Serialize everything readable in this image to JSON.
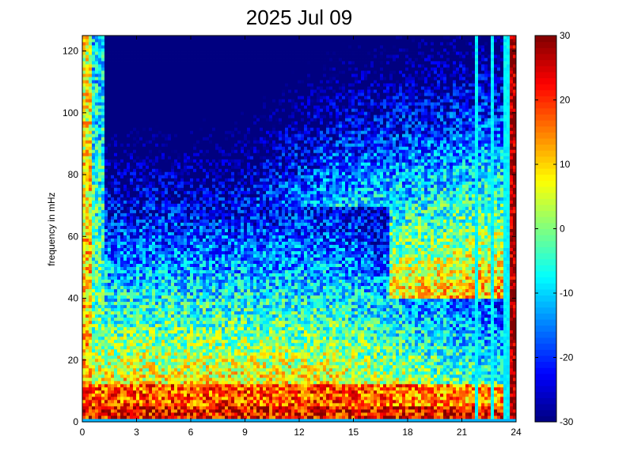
{
  "chart_data": {
    "type": "heatmap",
    "title": "2025 Jul 09",
    "xlabel": "",
    "ylabel": "frequency in mHz",
    "xlim": [
      0,
      24
    ],
    "ylim": [
      0,
      125
    ],
    "x_ticks": [
      "0",
      "3",
      "6",
      "9",
      "12",
      "15",
      "18",
      "21",
      "24"
    ],
    "y_ticks": [
      "0",
      "20",
      "40",
      "60",
      "80",
      "100",
      "120"
    ],
    "colorbar": {
      "range": [
        -30,
        30
      ],
      "ticks": [
        "-30",
        "-20",
        "-10",
        "0",
        "10",
        "20",
        "30"
      ],
      "colormap": "jet"
    },
    "colormap_colors": [
      "#00008f",
      "#0000ff",
      "#00ffff",
      "#ffff00",
      "#ff0000",
      "#800000"
    ],
    "bright_lines_hours": [
      21.8,
      22.7,
      23.5
    ],
    "grid": false
  }
}
